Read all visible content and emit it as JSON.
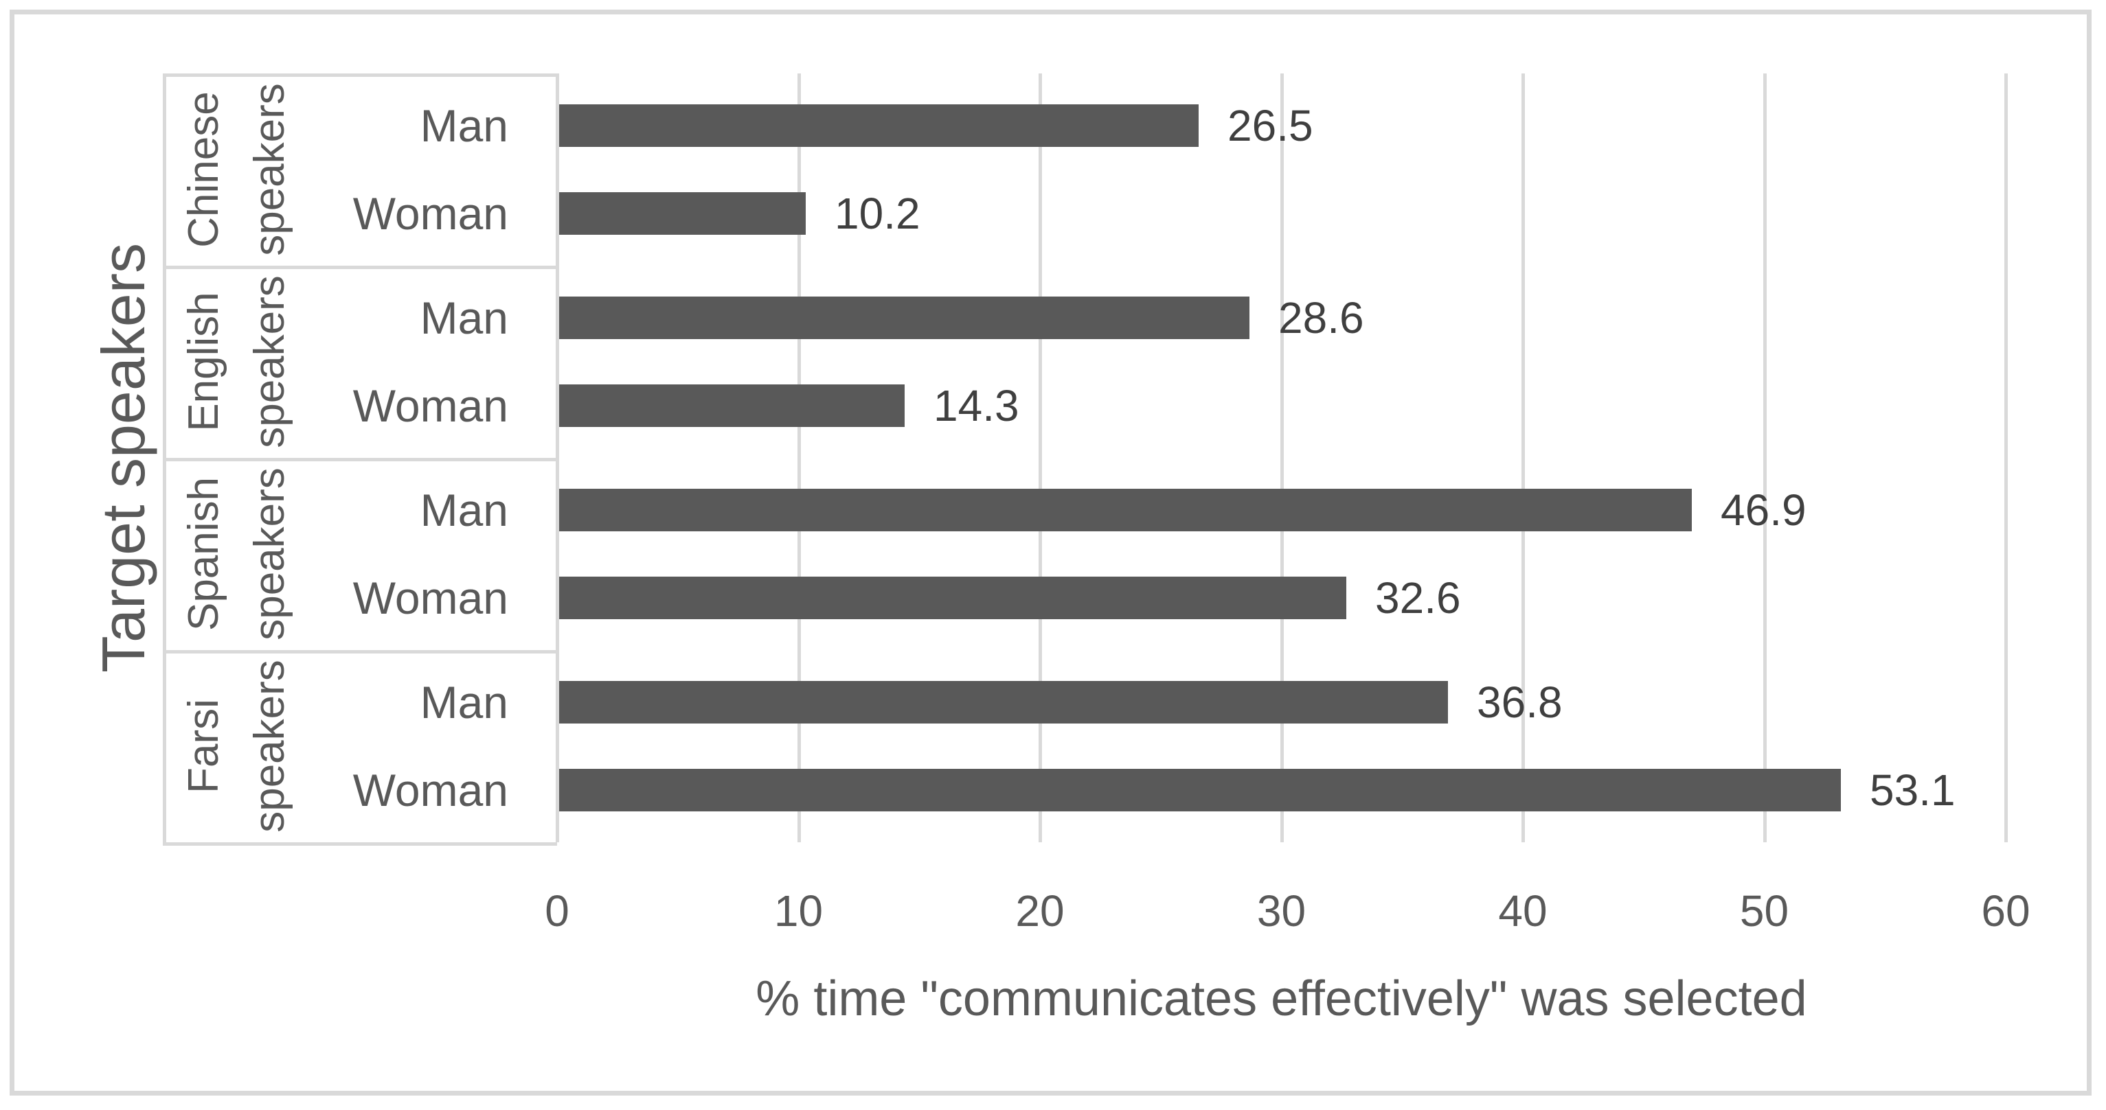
{
  "chart_data": {
    "type": "bar",
    "orientation": "horizontal",
    "xlabel": "% time \"communicates effectively\" was selected",
    "ylabel": "Target speakers",
    "xlim": [
      0,
      60
    ],
    "xticks": [
      0,
      10,
      20,
      30,
      40,
      50,
      60
    ],
    "grid": true,
    "legend": "none",
    "data_labels": true,
    "categories_per_group": [
      "Man",
      "Woman"
    ],
    "groups": [
      {
        "label": "Chinese speakers",
        "bars": [
          {
            "category": "Man",
            "value": 26.5
          },
          {
            "category": "Woman",
            "value": 10.2
          }
        ]
      },
      {
        "label": "English speakers",
        "bars": [
          {
            "category": "Man",
            "value": 28.6
          },
          {
            "category": "Woman",
            "value": 14.3
          }
        ]
      },
      {
        "label": "Spanish speakers",
        "bars": [
          {
            "category": "Man",
            "value": 46.9
          },
          {
            "category": "Woman",
            "value": 32.6
          }
        ]
      },
      {
        "label": "Farsi speakers",
        "bars": [
          {
            "category": "Man",
            "value": 36.8
          },
          {
            "category": "Woman",
            "value": 53.1
          }
        ]
      }
    ],
    "colors": {
      "bar": "#595959",
      "gridline": "#D9D9D9",
      "axis_text": "#595959",
      "data_label_text": "#3F3F3F",
      "frame_border": "#D9D9D9",
      "background": "#FFFFFF"
    }
  }
}
